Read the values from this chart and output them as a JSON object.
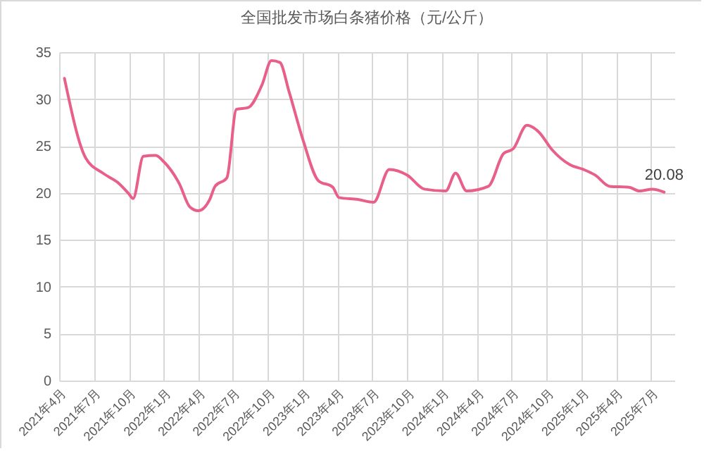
{
  "chart_data": {
    "type": "line",
    "title": "全国批发市场白条猪价格（元/公斤）",
    "x": [
      "2021-04-15",
      "2021-06-10",
      "2021-07-25",
      "2021-09-05",
      "2021-10-01",
      "2021-10-12",
      "2021-11-08",
      "2021-12-10",
      "2022-01-01",
      "2022-02-10",
      "2022-03-10",
      "2022-04-01",
      "2022-05-01",
      "2022-05-15",
      "2022-06-15",
      "2022-07-10",
      "2022-08-10",
      "2022-09-15",
      "2022-10-10",
      "2022-11-01",
      "2022-11-25",
      "2023-01-01",
      "2023-02-10",
      "2023-03-20",
      "2023-04-05",
      "2023-05-25",
      "2023-07-05",
      "2023-08-15",
      "2023-10-01",
      "2023-11-15",
      "2024-01-10",
      "2024-02-05",
      "2024-03-05",
      "2024-05-01",
      "2024-06-10",
      "2024-07-05",
      "2024-08-10",
      "2024-09-10",
      "2024-10-15",
      "2024-12-01",
      "2025-01-05",
      "2025-02-05",
      "2025-03-15",
      "2025-05-05",
      "2025-06-01",
      "2025-07-05",
      "2025-08-05"
    ],
    "series": [
      {
        "color": "#e8608a",
        "values": [
          32.2,
          23.7,
          22.1,
          21.0,
          19.9,
          19.4,
          23.9,
          24.0,
          23.3,
          21.0,
          18.5,
          18.1,
          19.3,
          20.7,
          21.6,
          28.9,
          29.1,
          31.5,
          34.1,
          33.9,
          30.8,
          25.6,
          21.3,
          20.6,
          19.5,
          19.3,
          19.0,
          22.5,
          21.9,
          20.4,
          20.2,
          22.1,
          20.2,
          20.7,
          24.2,
          24.7,
          27.2,
          26.5,
          24.6,
          23.0,
          22.5,
          21.9,
          20.7,
          20.6,
          20.2,
          20.4,
          20.08
        ],
        "value_labels": [
          null,
          null,
          null,
          null,
          null,
          null,
          null,
          null,
          null,
          null,
          null,
          null,
          null,
          null,
          null,
          null,
          null,
          null,
          null,
          null,
          null,
          null,
          null,
          null,
          null,
          null,
          null,
          null,
          null,
          null,
          null,
          null,
          null,
          null,
          null,
          null,
          null,
          null,
          null,
          null,
          null,
          null,
          null,
          null,
          null,
          null,
          "20.08"
        ]
      }
    ],
    "xlim": [
      "2021-04-01",
      "2025-09-01"
    ],
    "xticks": [
      {
        "value": "2021-04",
        "label": "2021年4月"
      },
      {
        "value": "2021-07",
        "label": "2021年7月"
      },
      {
        "value": "2021-10",
        "label": "2021年10月"
      },
      {
        "value": "2022-01",
        "label": "2022年1月"
      },
      {
        "value": "2022-04",
        "label": "2022年4月"
      },
      {
        "value": "2022-07",
        "label": "2022年7月"
      },
      {
        "value": "2022-10",
        "label": "2022年10月"
      },
      {
        "value": "2023-01",
        "label": "2023年1月"
      },
      {
        "value": "2023-04",
        "label": "2023年4月"
      },
      {
        "value": "2023-07",
        "label": "2023年7月"
      },
      {
        "value": "2023-10",
        "label": "2023年10月"
      },
      {
        "value": "2024-01",
        "label": "2024年1月"
      },
      {
        "value": "2024-04",
        "label": "2024年4月"
      },
      {
        "value": "2024-07",
        "label": "2024年7月"
      },
      {
        "value": "2024-10",
        "label": "2024年10月"
      },
      {
        "value": "2025-01",
        "label": "2025年1月"
      },
      {
        "value": "2025-04",
        "label": "2025年4月"
      },
      {
        "value": "2025-07",
        "label": "2025年7月"
      }
    ],
    "ylim": [
      0,
      35
    ],
    "yticks": [
      0,
      5,
      10,
      15,
      20,
      25,
      30,
      35
    ],
    "grid": true,
    "marker": "none",
    "line_style": "solid"
  }
}
